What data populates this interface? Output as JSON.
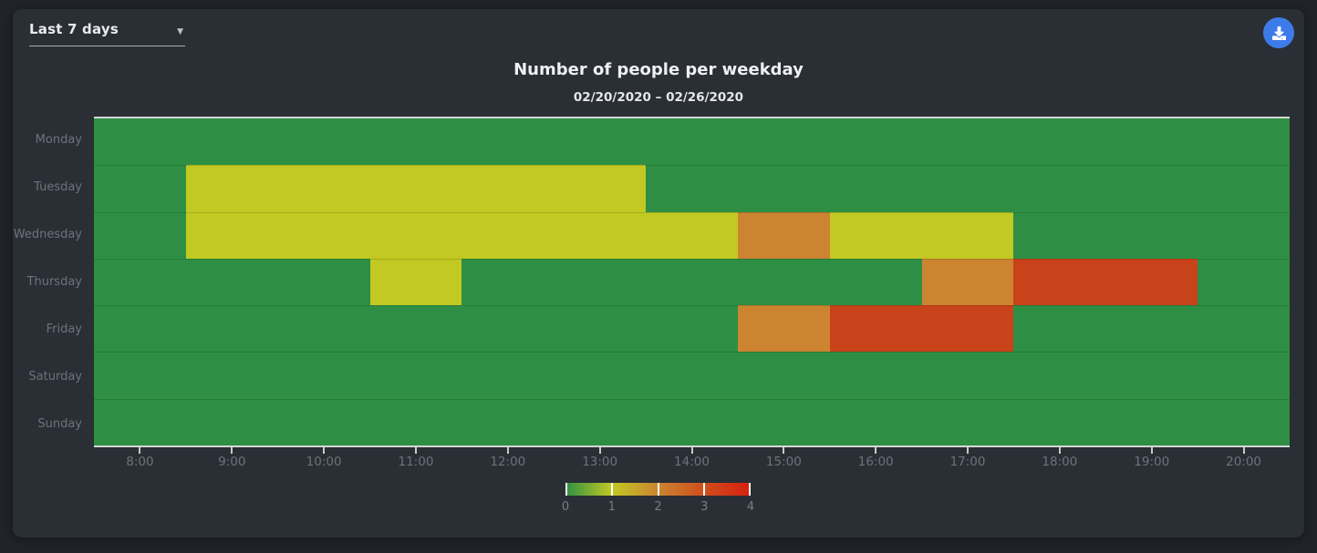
{
  "controls": {
    "range_selector": {
      "value": "Last 7 days",
      "icon": "chevron-down-icon"
    },
    "download_button": {
      "icon": "download-icon",
      "color": "#3d7ce8"
    }
  },
  "chart": {
    "title": "Number of people per weekday",
    "subtitle": "02/20/2020 – 02/26/2020"
  },
  "chart_data": {
    "type": "heatmap",
    "title": "Number of people per weekday",
    "subtitle": "02/20/2020 – 02/26/2020",
    "y_categories": [
      "Monday",
      "Tuesday",
      "Wednesday",
      "Thursday",
      "Friday",
      "Saturday",
      "Sunday"
    ],
    "x_axis": {
      "range_start": "7:30",
      "range_end": "20:30",
      "tick_labels": [
        "8:00",
        "9:00",
        "10:00",
        "11:00",
        "12:00",
        "13:00",
        "14:00",
        "15:00",
        "16:00",
        "17:00",
        "18:00",
        "19:00",
        "20:00"
      ]
    },
    "baseline_value": 0,
    "segments": [
      {
        "day": "Tuesday",
        "start": "8:30",
        "end": "13:30",
        "value": 1
      },
      {
        "day": "Wednesday",
        "start": "8:30",
        "end": "14:30",
        "value": 1
      },
      {
        "day": "Wednesday",
        "start": "14:30",
        "end": "15:30",
        "value": 2
      },
      {
        "day": "Wednesday",
        "start": "15:30",
        "end": "17:30",
        "value": 1
      },
      {
        "day": "Thursday",
        "start": "10:30",
        "end": "11:30",
        "value": 1
      },
      {
        "day": "Thursday",
        "start": "16:30",
        "end": "17:30",
        "value": 2
      },
      {
        "day": "Thursday",
        "start": "17:30",
        "end": "19:30",
        "value": 3
      },
      {
        "day": "Friday",
        "start": "14:30",
        "end": "15:30",
        "value": 2
      },
      {
        "day": "Friday",
        "start": "15:30",
        "end": "17:30",
        "value": 3
      }
    ],
    "value_colors": [
      "#2e8f44",
      "#c1c922",
      "#cc8430",
      "#c8431a",
      "#d81f0e"
    ],
    "legend": {
      "min": 0,
      "max": 4,
      "tick_labels": [
        "0",
        "1",
        "2",
        "3",
        "4"
      ],
      "gradient": [
        "#2e8f44",
        "#c1c922",
        "#cc8430",
        "#cf4e1d",
        "#d81f0e"
      ],
      "position": "bottom"
    }
  },
  "colors": {
    "page_background": "#202329",
    "card_background": "#2a2e35",
    "axis_line": "#d4d8d4",
    "label_gray": "#6e737a",
    "title_text": "#eef0f2"
  }
}
